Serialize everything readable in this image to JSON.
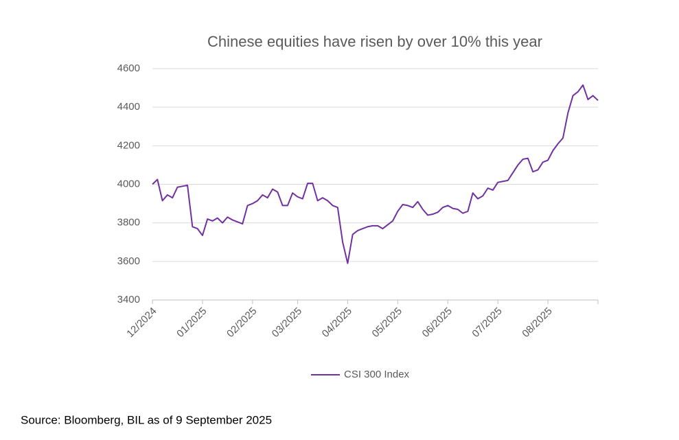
{
  "chart_data": {
    "type": "line",
    "title": "Chinese equities have risen by over 10% this year",
    "source": "Source: Bloomberg, BIL as of 9 September 2025",
    "categories": [
      "12/2024",
      null,
      null,
      null,
      null,
      null,
      null,
      null,
      null,
      null,
      "01/2025",
      null,
      null,
      null,
      null,
      null,
      null,
      null,
      null,
      null,
      "02/2025",
      null,
      null,
      null,
      null,
      null,
      null,
      null,
      null,
      "03/2025",
      null,
      null,
      null,
      null,
      null,
      null,
      null,
      null,
      null,
      "04/2025",
      null,
      null,
      null,
      null,
      null,
      null,
      null,
      null,
      null,
      "05/2025",
      null,
      null,
      null,
      null,
      null,
      null,
      null,
      null,
      null,
      "06/2025",
      null,
      null,
      null,
      null,
      null,
      null,
      null,
      null,
      null,
      "07/2025",
      null,
      null,
      null,
      null,
      null,
      null,
      null,
      null,
      null,
      "08/2025",
      null,
      null,
      null,
      null,
      null,
      null,
      null,
      null,
      null,
      null
    ],
    "series": [
      {
        "name": "CSI 300 Index",
        "color": "#7030a0",
        "values": [
          4000,
          4025,
          3915,
          3945,
          3930,
          3985,
          3990,
          3995,
          3780,
          3770,
          3735,
          3820,
          3810,
          3825,
          3800,
          3830,
          3815,
          3805,
          3795,
          3890,
          3900,
          3915,
          3945,
          3930,
          3975,
          3960,
          3890,
          3890,
          3955,
          3935,
          3925,
          4005,
          4005,
          3915,
          3930,
          3915,
          3890,
          3880,
          3700,
          3590,
          3740,
          3760,
          3770,
          3780,
          3785,
          3785,
          3770,
          3790,
          3810,
          3860,
          3895,
          3890,
          3880,
          3910,
          3870,
          3840,
          3845,
          3855,
          3880,
          3890,
          3875,
          3870,
          3850,
          3860,
          3955,
          3925,
          3940,
          3980,
          3970,
          4010,
          4015,
          4020,
          4060,
          4100,
          4130,
          4135,
          4065,
          4075,
          4115,
          4125,
          4175,
          4210,
          4240,
          4370,
          4460,
          4480,
          4515,
          4440,
          4460,
          4435
        ]
      }
    ],
    "ylim": [
      3400,
      4600
    ],
    "yticks": [
      3400,
      3600,
      3800,
      4000,
      4200,
      4400,
      4600
    ],
    "grid": true,
    "legend": "bottom"
  }
}
